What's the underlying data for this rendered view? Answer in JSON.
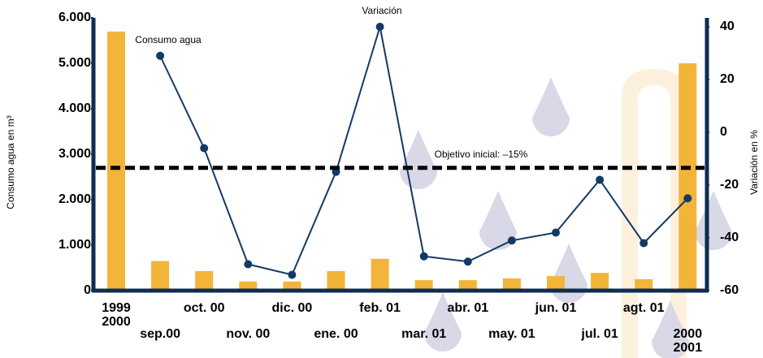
{
  "chart_data": {
    "type": "bar_line",
    "categories": [
      "1999\n2000",
      "sep.00",
      "oct. 00",
      "nov. 00",
      "dic. 00",
      "ene. 00",
      "feb. 01",
      "mar. 01",
      "abr. 01",
      "may. 01",
      "jun. 01",
      "jul. 01",
      "agt. 01",
      "2000\n2001"
    ],
    "series": [
      {
        "name": "Consumo agua",
        "type": "bar",
        "color": "#f2b53a",
        "values": [
          5700,
          650,
          430,
          200,
          200,
          430,
          700,
          230,
          230,
          270,
          320,
          390,
          250,
          5000
        ]
      },
      {
        "name": "Variación",
        "type": "line",
        "axis": "y2",
        "color": "#123a66",
        "values": [
          null,
          29,
          -6,
          -50,
          -54,
          -15,
          40,
          -47,
          -49,
          -41,
          -38,
          -18,
          -42,
          -25
        ]
      }
    ],
    "ylabel": "Consumo agua en m³",
    "y2label": "Variación en %",
    "ylim": [
      0,
      6000
    ],
    "yticks": [
      0,
      {
        "value": 1000,
        "label": "1.000"
      },
      {
        "value": 2000,
        "label": "2.000"
      },
      {
        "value": 3000,
        "label": "3.000"
      },
      {
        "value": 4000,
        "label": "4.000"
      },
      {
        "value": 5000,
        "label": "5.000"
      },
      {
        "value": 6000,
        "label": "6.000"
      }
    ],
    "y2lim": [
      -60,
      40
    ],
    "y2ticks": [
      -60,
      -40,
      -20,
      0,
      20,
      40
    ],
    "target": {
      "label": "Objetivo inicial: –15%",
      "value": 2700
    }
  }
}
